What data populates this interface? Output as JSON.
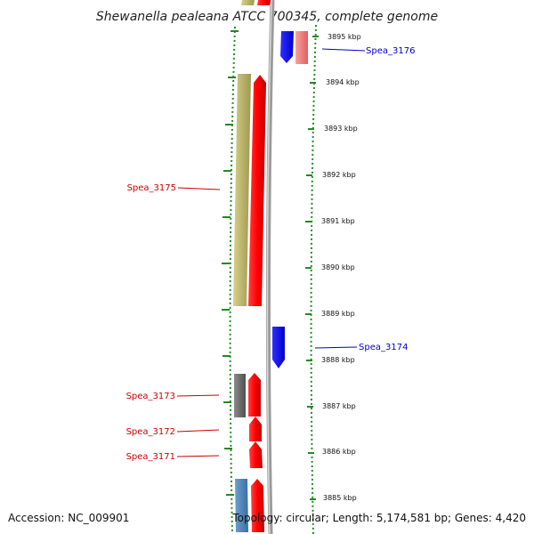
{
  "title": "Shewanella pealeana ATCC 700345, complete genome",
  "accession": "Accession: NC_009901",
  "summary": "Topology: circular; Length: 5,174,581 bp; Genes: 4,420",
  "scale_labels": [
    "3895 kbp",
    "3894 kbp",
    "3893 kbp",
    "3892 kbp",
    "3891 kbp",
    "3890 kbp",
    "3889 kbp",
    "3888 kbp",
    "3887 kbp",
    "3886 kbp",
    "3885 kbp"
  ],
  "gene_labels": [
    {
      "text": "Spea_3176",
      "color": "#0000cc"
    },
    {
      "text": "Spea_3175",
      "color": "#cc0000"
    },
    {
      "text": "Spea_3174",
      "color": "#0000cc"
    },
    {
      "text": "Spea_3173",
      "color": "#cc0000"
    },
    {
      "text": "Spea_3172",
      "color": "#cc0000"
    },
    {
      "text": "Spea_3171",
      "color": "#cc0000"
    }
  ],
  "colors": {
    "forward_gene": "#ff0000",
    "reverse_gene": "#0000ff",
    "reverse_gene_light": "#f08080",
    "orf_olive": "#bdb76b",
    "orf_gray": "#696969",
    "orf_steelblue": "#4682b4",
    "backbone": "#9a9a9a",
    "tick": "#228b22"
  }
}
